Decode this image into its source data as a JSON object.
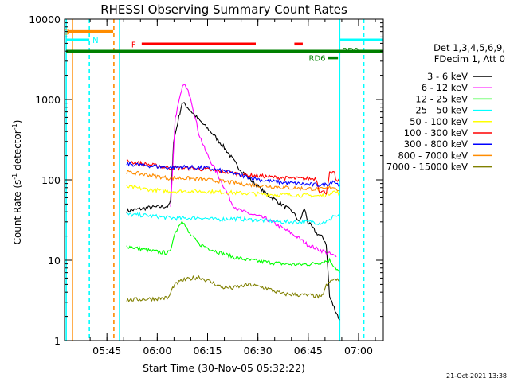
{
  "chart_data": {
    "type": "line",
    "title": "RHESSI Observing Summary Count Rates",
    "xlabel": "Start Time (30-Nov-05 05:32:22)",
    "ylabel_main": "Count Rate (s",
    "ylabel_sup": "-1",
    "ylabel_tail": " detector",
    "ylabel_close": ")",
    "y_scale": "log",
    "ylim": [
      1,
      10000
    ],
    "xlim_minutes": [
      0,
      95
    ],
    "x_ticks": [
      {
        "t": 12.63,
        "label": "05:45"
      },
      {
        "t": 27.63,
        "label": "06:00"
      },
      {
        "t": 42.63,
        "label": "06:15"
      },
      {
        "t": 57.63,
        "label": "06:30"
      },
      {
        "t": 72.63,
        "label": "06:45"
      },
      {
        "t": 87.63,
        "label": "07:00"
      }
    ],
    "y_ticks": [
      {
        "v": 1,
        "label": "1"
      },
      {
        "v": 10,
        "label": "10"
      },
      {
        "v": 100,
        "label": "100"
      },
      {
        "v": 1000,
        "label": "1000"
      },
      {
        "v": 10000,
        "label": "10000"
      }
    ],
    "legend_header": [
      "Det 1,3,4,5,6,9,",
      "FDecim 1, Att 0"
    ],
    "series": [
      {
        "name": "3 - 6 keV",
        "color": "#000000",
        "points": [
          [
            18.5,
            41
          ],
          [
            25,
            45
          ],
          [
            31,
            47
          ],
          [
            31.6,
            55
          ],
          [
            32.5,
            300
          ],
          [
            35,
            900
          ],
          [
            36,
            860
          ],
          [
            40,
            560
          ],
          [
            44,
            380
          ],
          [
            48,
            240
          ],
          [
            52,
            140
          ],
          [
            56,
            95
          ],
          [
            60,
            68
          ],
          [
            64,
            52
          ],
          [
            68,
            40
          ],
          [
            70,
            30
          ],
          [
            71.5,
            44
          ],
          [
            72.5,
            30
          ],
          [
            75,
            22
          ],
          [
            77,
            19
          ],
          [
            78,
            16
          ],
          [
            79,
            3.5
          ],
          [
            82,
            1.8
          ]
        ]
      },
      {
        "name": "6 - 12 keV",
        "color": "#ff00ff",
        "points": [
          [
            31.6,
            45
          ],
          [
            33,
            600
          ],
          [
            35.5,
            1600
          ],
          [
            37.5,
            1100
          ],
          [
            40,
            380
          ],
          [
            42,
            230
          ],
          [
            45,
            130
          ],
          [
            48,
            75
          ],
          [
            50,
            50
          ],
          [
            52,
            42
          ],
          [
            55,
            38
          ],
          [
            60,
            33
          ],
          [
            65,
            25
          ],
          [
            69,
            20
          ],
          [
            72,
            16
          ],
          [
            75,
            14
          ],
          [
            77,
            13
          ],
          [
            79,
            12
          ],
          [
            81,
            11
          ]
        ]
      },
      {
        "name": "12 - 25 keV",
        "color": "#00ff00",
        "points": [
          [
            18.5,
            15
          ],
          [
            22,
            14
          ],
          [
            26,
            13
          ],
          [
            29,
            12.5
          ],
          [
            31.5,
            12.5
          ],
          [
            32.5,
            20
          ],
          [
            35,
            32
          ],
          [
            37,
            22
          ],
          [
            40,
            16
          ],
          [
            45,
            13
          ],
          [
            50,
            11
          ],
          [
            55,
            10
          ],
          [
            60,
            9.5
          ],
          [
            65,
            9
          ],
          [
            70,
            8.8
          ],
          [
            74,
            9
          ],
          [
            77,
            9.5
          ],
          [
            79,
            10
          ],
          [
            82,
            7
          ]
        ]
      },
      {
        "name": "25 - 50 keV",
        "color": "#00ffff",
        "points": [
          [
            18.5,
            37
          ],
          [
            25,
            36
          ],
          [
            30,
            34
          ],
          [
            35,
            33
          ],
          [
            40,
            34
          ],
          [
            45,
            32
          ],
          [
            50,
            33
          ],
          [
            55,
            32
          ],
          [
            60,
            31
          ],
          [
            65,
            30
          ],
          [
            70,
            30
          ],
          [
            74,
            30
          ],
          [
            76,
            29
          ],
          [
            77.5,
            30
          ],
          [
            79,
            31
          ],
          [
            80,
            36
          ],
          [
            82,
            35
          ]
        ]
      },
      {
        "name": "50 - 100 keV",
        "color": "#ffff00",
        "points": [
          [
            18.5,
            82
          ],
          [
            25,
            76
          ],
          [
            31,
            72
          ],
          [
            36,
            72
          ],
          [
            42,
            72
          ],
          [
            48,
            70
          ],
          [
            54,
            68
          ],
          [
            60,
            66
          ],
          [
            66,
            65
          ],
          [
            72,
            64
          ],
          [
            76,
            63
          ],
          [
            78,
            65
          ],
          [
            80,
            72
          ],
          [
            82,
            68
          ]
        ]
      },
      {
        "name": "100 - 300 keV",
        "color": "#ff0000",
        "points": [
          [
            18.5,
            170
          ],
          [
            25,
            155
          ],
          [
            31,
            142
          ],
          [
            36,
            140
          ],
          [
            42,
            135
          ],
          [
            48,
            125
          ],
          [
            54,
            115
          ],
          [
            60,
            110
          ],
          [
            66,
            105
          ],
          [
            72,
            103
          ],
          [
            75,
            104
          ],
          [
            76,
            72
          ],
          [
            78,
            70
          ],
          [
            79,
            120
          ],
          [
            80.5,
            120
          ],
          [
            81,
            96
          ],
          [
            82,
            95
          ]
        ]
      },
      {
        "name": "300 - 800 keV",
        "color": "#0000ff",
        "points": [
          [
            18.5,
            158
          ],
          [
            25,
            150
          ],
          [
            31,
            142
          ],
          [
            36,
            145
          ],
          [
            42,
            140
          ],
          [
            48,
            128
          ],
          [
            54,
            110
          ],
          [
            60,
            97
          ],
          [
            66,
            92
          ],
          [
            72,
            88
          ],
          [
            77,
            86
          ],
          [
            79,
            90
          ],
          [
            80,
            98
          ],
          [
            82,
            84
          ]
        ]
      },
      {
        "name": "800 - 7000 keV",
        "color": "#ff8c00",
        "points": [
          [
            18.5,
            125
          ],
          [
            25,
            115
          ],
          [
            31,
            105
          ],
          [
            36,
            105
          ],
          [
            42,
            100
          ],
          [
            48,
            95
          ],
          [
            54,
            88
          ],
          [
            60,
            84
          ],
          [
            66,
            80
          ],
          [
            72,
            78
          ],
          [
            77,
            76
          ],
          [
            79,
            80
          ],
          [
            80,
            82
          ],
          [
            82,
            74
          ]
        ]
      },
      {
        "name": "7000 - 15000 keV",
        "color": "#808000",
        "points": [
          [
            18.5,
            3.2
          ],
          [
            25,
            3.3
          ],
          [
            31,
            3.4
          ],
          [
            32.5,
            4.8
          ],
          [
            35,
            5.6
          ],
          [
            40,
            6.2
          ],
          [
            43,
            5.5
          ],
          [
            47,
            4.6
          ],
          [
            50,
            4.5
          ],
          [
            55,
            5.0
          ],
          [
            60,
            4.5
          ],
          [
            65,
            3.8
          ],
          [
            70,
            3.7
          ],
          [
            75,
            3.6
          ],
          [
            76.5,
            3.4
          ],
          [
            78,
            4.8
          ],
          [
            80,
            5.8
          ],
          [
            82,
            5.5
          ]
        ]
      }
    ],
    "flag_segments": [
      {
        "label": "S",
        "color": "#ff8c00",
        "t0": 0.8,
        "t1": 14.5,
        "y": 7000
      },
      {
        "label": "N",
        "color": "#00ffff",
        "t0": 0.5,
        "t1": 7.4,
        "y": 5500
      },
      {
        "label": "",
        "color": "#00ffff",
        "t0": 82,
        "t1": 95,
        "y": 5500
      },
      {
        "label": "F",
        "color": "#ff0000",
        "t0": 23,
        "t1": 57,
        "y": 4900
      },
      {
        "label": "",
        "color": "#ff0000",
        "t0": 68.5,
        "t1": 71,
        "y": 4900
      },
      {
        "label": "RD9",
        "color": "#008000",
        "t0": 0.5,
        "t1": 95,
        "y": 4000
      },
      {
        "label": "RD6",
        "color": "#008000",
        "t0": 78.5,
        "t1": 81.5,
        "y": 3300
      }
    ],
    "vertical_markers": [
      {
        "t": 0.5,
        "color": "#00ffff",
        "style": "solid"
      },
      {
        "t": 2.4,
        "color": "#ff8c00",
        "style": "solid"
      },
      {
        "t": 7.4,
        "color": "#00ffff",
        "style": "dashed"
      },
      {
        "t": 14.7,
        "color": "#ff8c00",
        "style": "dashed"
      },
      {
        "t": 16.4,
        "color": "#00ffff",
        "style": "solid"
      },
      {
        "t": 82,
        "color": "#00ffff",
        "style": "solid"
      },
      {
        "t": 89.2,
        "color": "#00ffff",
        "style": "dashed"
      }
    ],
    "footer_date": "21-Oct-2021 13:38"
  }
}
